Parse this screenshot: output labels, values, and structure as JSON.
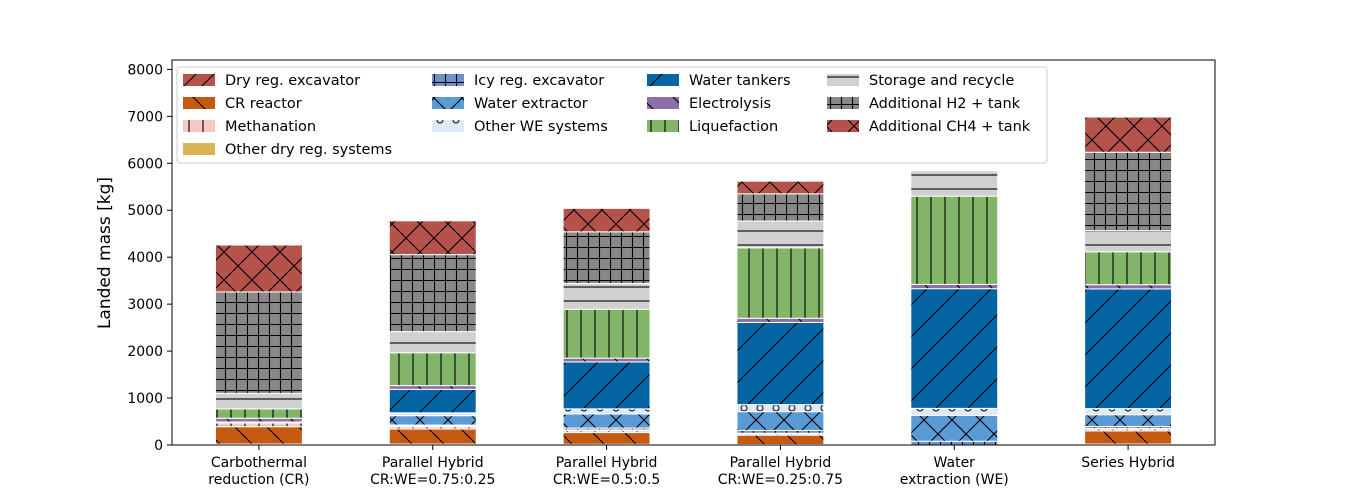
{
  "chart_data": {
    "type": "bar",
    "stacked": true,
    "title": "",
    "xlabel": "",
    "ylabel": "Landed mass [kg]",
    "ylim": [
      0,
      8200
    ],
    "yticks": [
      0,
      1000,
      2000,
      3000,
      4000,
      5000,
      6000,
      7000,
      8000
    ],
    "legend_position": "upper-left",
    "categories": [
      [
        "Carbothermal",
        "reduction (CR)"
      ],
      [
        "Parallel Hybrid",
        "CR:WE=0.75:0.25"
      ],
      [
        "Parallel Hybrid",
        "CR:WE=0.5:0.5"
      ],
      [
        "Parallel Hybrid",
        "CR:WE=0.25:0.75"
      ],
      [
        "Water",
        "extraction (WE)"
      ],
      [
        "Series Hybrid"
      ]
    ],
    "series": [
      {
        "name": "Dry reg. excavator",
        "color": "#b5524c",
        "hatch": "slash-back",
        "values": [
          20,
          20,
          15,
          10,
          0,
          20
        ]
      },
      {
        "name": "CR reactor",
        "color": "#c65a12",
        "hatch": "backslash",
        "values": [
          370,
          320,
          250,
          200,
          0,
          280
        ]
      },
      {
        "name": "Methanation",
        "color": "#f4c9c5",
        "hatch": "vline",
        "values": [
          80,
          50,
          40,
          30,
          0,
          40
        ]
      },
      {
        "name": "Other dry reg. systems",
        "color": "#d8b455",
        "hatch": "none",
        "values": [
          20,
          15,
          15,
          10,
          0,
          15
        ]
      },
      {
        "name": "Icy reg. excavator",
        "color": "#7092c9",
        "hatch": "grid",
        "values": [
          0,
          20,
          40,
          60,
          80,
          40
        ]
      },
      {
        "name": "Water extractor",
        "color": "#5b9bd5",
        "hatch": "cross",
        "values": [
          0,
          200,
          300,
          400,
          550,
          250
        ]
      },
      {
        "name": "Other WE systems",
        "color": "#deebf7",
        "hatch": "circle",
        "values": [
          0,
          60,
          110,
          150,
          150,
          130
        ]
      },
      {
        "name": "Water tankers",
        "color": "#0564a3",
        "hatch": "slash",
        "values": [
          0,
          500,
          1000,
          1750,
          2550,
          2550
        ]
      },
      {
        "name": "Electrolysis",
        "color": "#8e6fa8",
        "hatch": "backslash",
        "values": [
          80,
          80,
          80,
          90,
          90,
          90
        ]
      },
      {
        "name": "Liquefaction",
        "color": "#82b567",
        "hatch": "vline",
        "values": [
          200,
          700,
          1040,
          1500,
          1880,
          700
        ]
      },
      {
        "name": "Storage and recycle",
        "color": "#d0d0d0",
        "hatch": "hline",
        "values": [
          330,
          450,
          550,
          570,
          540,
          450
        ]
      },
      {
        "name": "Additional H2 + tank",
        "color": "#888888",
        "hatch": "grid",
        "values": [
          2160,
          1640,
          1100,
          580,
          0,
          1670
        ]
      },
      {
        "name": "Additional CH4 + tank",
        "color": "#b5524c",
        "hatch": "cross",
        "values": [
          1000,
          720,
          500,
          270,
          0,
          750
        ]
      }
    ]
  }
}
